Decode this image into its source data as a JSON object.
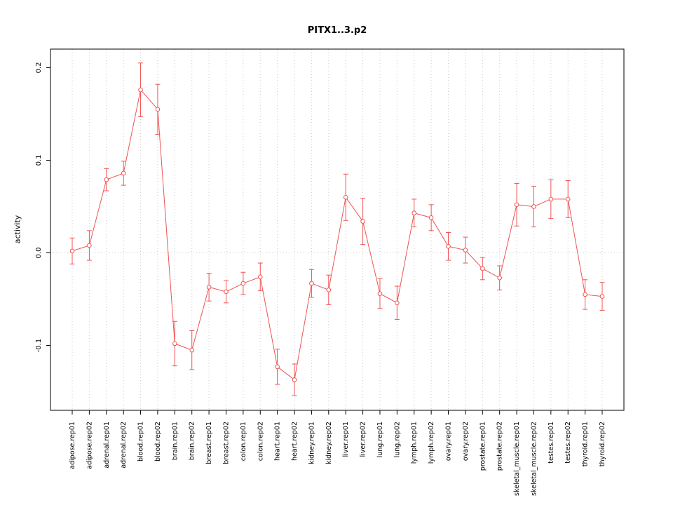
{
  "chart_data": {
    "type": "line",
    "title": "PITX1..3.p2",
    "xlabel": "",
    "ylabel": "activity",
    "ylim": [
      -0.17,
      0.22
    ],
    "yticks": [
      -0.1,
      0.0,
      0.1,
      0.2
    ],
    "grid": true,
    "legend": "none",
    "series_color": "#f05353",
    "grid_color": "#cccccc",
    "axis_color": "#000000",
    "marker": "open-circle",
    "error_bars": true,
    "categories": [
      "adipose.rep01",
      "adipose.rep02",
      "adrenal.rep01",
      "adrenal.rep02",
      "blood.rep01",
      "blood.rep02",
      "brain.rep01",
      "brain.rep02",
      "breast.rep01",
      "breast.rep02",
      "colon.rep01",
      "colon.rep02",
      "heart.rep01",
      "heart.rep02",
      "kidney.rep01",
      "kidney.rep02",
      "liver.rep01",
      "liver.rep02",
      "lung.rep01",
      "lung.rep02",
      "lymph.rep01",
      "lymph.rep02",
      "ovary.rep01",
      "ovary.rep02",
      "prostate.rep01",
      "prostate.rep02",
      "skeletal_muscle.rep01",
      "skeletal_muscle.rep02",
      "testes.rep01",
      "testes.rep02",
      "thyroid.rep01",
      "thyroid.rep02"
    ],
    "values": [
      0.002,
      0.008,
      0.079,
      0.086,
      0.176,
      0.155,
      -0.098,
      -0.105,
      -0.037,
      -0.042,
      -0.033,
      -0.026,
      -0.123,
      -0.137,
      -0.033,
      -0.04,
      0.06,
      0.034,
      -0.044,
      -0.054,
      0.043,
      0.038,
      0.007,
      0.003,
      -0.017,
      -0.027,
      0.052,
      0.05,
      0.058,
      0.058,
      -0.045,
      -0.047
    ],
    "errors": [
      0.014,
      0.016,
      0.012,
      0.013,
      0.029,
      0.027,
      0.024,
      0.021,
      0.015,
      0.012,
      0.012,
      0.015,
      0.019,
      0.017,
      0.015,
      0.016,
      0.025,
      0.025,
      0.016,
      0.018,
      0.015,
      0.014,
      0.015,
      0.014,
      0.012,
      0.013,
      0.023,
      0.022,
      0.021,
      0.02,
      0.016,
      0.015
    ]
  }
}
